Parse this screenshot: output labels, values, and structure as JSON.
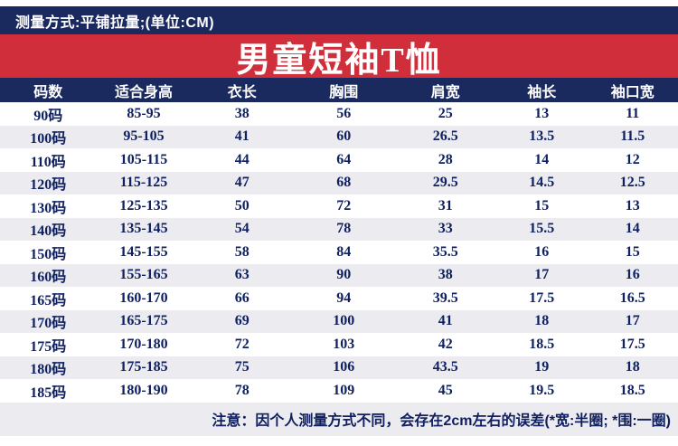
{
  "colors": {
    "navy": "#1b2a5e",
    "red": "#cf2e3a",
    "row_alt": "#ebebf0",
    "cell_text": "#0f2060",
    "header_text": "#ffffff"
  },
  "top_bar": {
    "text": "测量方式:平铺拉量;(单位:CM)"
  },
  "note": {
    "text": "注意：因个人测量方式不同，会存在2cm左右的误差(*宽:半圈; *围:一圈)"
  },
  "chart_data": {
    "type": "table",
    "title": "男童短袖T恤",
    "unit": "CM",
    "columns": [
      "码数",
      "适合身高",
      "衣长",
      "胸围",
      "肩宽",
      "袖长",
      "袖口宽"
    ],
    "rows": [
      [
        "90码",
        "85-95",
        "38",
        "56",
        "25",
        "13",
        "11"
      ],
      [
        "100码",
        "95-105",
        "41",
        "60",
        "26.5",
        "13.5",
        "11.5"
      ],
      [
        "110码",
        "105-115",
        "44",
        "64",
        "28",
        "14",
        "12"
      ],
      [
        "120码",
        "115-125",
        "47",
        "68",
        "29.5",
        "14.5",
        "12.5"
      ],
      [
        "130码",
        "125-135",
        "50",
        "72",
        "31",
        "15",
        "13"
      ],
      [
        "140码",
        "135-145",
        "54",
        "78",
        "33",
        "15.5",
        "14"
      ],
      [
        "150码",
        "145-155",
        "58",
        "84",
        "35.5",
        "16",
        "15"
      ],
      [
        "160码",
        "155-165",
        "63",
        "90",
        "38",
        "17",
        "16"
      ],
      [
        "165码",
        "160-170",
        "66",
        "94",
        "39.5",
        "17.5",
        "16.5"
      ],
      [
        "170码",
        "165-175",
        "69",
        "100",
        "41",
        "18",
        "17"
      ],
      [
        "175码",
        "170-180",
        "72",
        "103",
        "42",
        "18.5",
        "17.5"
      ],
      [
        "180码",
        "175-185",
        "75",
        "106",
        "43.5",
        "19",
        "18"
      ],
      [
        "185码",
        "180-190",
        "78",
        "109",
        "45",
        "19.5",
        "18.5"
      ]
    ]
  }
}
